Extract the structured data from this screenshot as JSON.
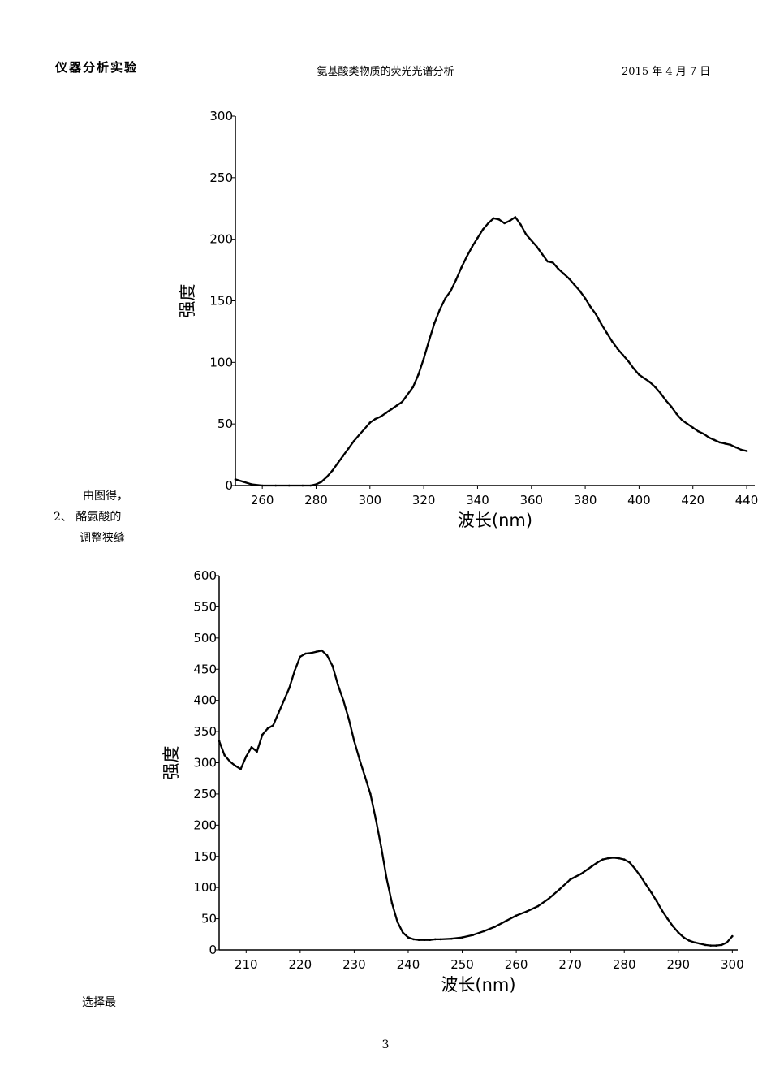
{
  "header": {
    "left": "仪器分析实验",
    "center": "氨基酸类物质的荧光光谱分析",
    "right": "2015 年 4 月 7 日"
  },
  "body": {
    "line1": "由图得，",
    "line2": "2、 酪氨酸的",
    "line3": "调整狭缝",
    "line4": "选择最"
  },
  "page_number": "3",
  "chart_data": [
    {
      "type": "line",
      "title": "",
      "xlabel": "波长(nm)",
      "ylabel": "强度",
      "xlim": [
        250,
        443
      ],
      "ylim": [
        0,
        300
      ],
      "xticks": [
        260,
        280,
        300,
        320,
        340,
        360,
        380,
        400,
        420,
        440
      ],
      "yticks": [
        0,
        50,
        100,
        150,
        200,
        250,
        300
      ],
      "x": [
        250,
        253,
        256,
        260,
        265,
        270,
        275,
        278,
        280,
        282,
        284,
        286,
        288,
        290,
        292,
        294,
        296,
        298,
        300,
        302,
        304,
        306,
        308,
        310,
        312,
        314,
        316,
        318,
        320,
        322,
        324,
        326,
        328,
        330,
        332,
        334,
        336,
        338,
        340,
        342,
        344,
        346,
        348,
        350,
        352,
        354,
        356,
        358,
        360,
        362,
        364,
        366,
        368,
        370,
        372,
        374,
        376,
        378,
        380,
        382,
        384,
        386,
        388,
        390,
        392,
        394,
        396,
        398,
        400,
        402,
        404,
        406,
        408,
        410,
        412,
        414,
        416,
        418,
        420,
        422,
        424,
        426,
        428,
        430,
        432,
        434,
        436,
        438,
        440
      ],
      "values": [
        5,
        3,
        1,
        0,
        0,
        0,
        0,
        0,
        1,
        3,
        7,
        12,
        18,
        24,
        30,
        36,
        41,
        46,
        51,
        54,
        56,
        59,
        62,
        65,
        68,
        74,
        80,
        90,
        103,
        118,
        132,
        143,
        152,
        158,
        167,
        177,
        186,
        194,
        201,
        208,
        213,
        217,
        216,
        213,
        215,
        218,
        212,
        204,
        199,
        194,
        188,
        182,
        181,
        176,
        172,
        168,
        163,
        158,
        152,
        145,
        139,
        131,
        124,
        117,
        111,
        106,
        101,
        95,
        90,
        87,
        84,
        80,
        75,
        69,
        64,
        58,
        53,
        50,
        47,
        44,
        42,
        39,
        37,
        35,
        34,
        33,
        31,
        29,
        28
      ]
    },
    {
      "type": "line",
      "title": "",
      "xlabel": "波长(nm)",
      "ylabel": "强度",
      "xlim": [
        205,
        301
      ],
      "ylim": [
        0,
        600
      ],
      "xticks": [
        210,
        220,
        230,
        240,
        250,
        260,
        270,
        280,
        290,
        300
      ],
      "yticks": [
        0,
        50,
        100,
        150,
        200,
        250,
        300,
        350,
        400,
        450,
        500,
        550,
        600
      ],
      "x": [
        205,
        206,
        207,
        208,
        209,
        210,
        211,
        212,
        213,
        214,
        215,
        216,
        217,
        218,
        219,
        220,
        221,
        222,
        223,
        224,
        225,
        226,
        227,
        228,
        229,
        230,
        231,
        232,
        233,
        234,
        235,
        236,
        237,
        238,
        239,
        240,
        241,
        242,
        243,
        244,
        245,
        246,
        248,
        250,
        252,
        254,
        256,
        258,
        260,
        262,
        264,
        266,
        268,
        270,
        272,
        274,
        275,
        276,
        277,
        278,
        279,
        280,
        281,
        282,
        283,
        284,
        285,
        286,
        287,
        288,
        289,
        290,
        291,
        292,
        293,
        294,
        295,
        296,
        297,
        298,
        299,
        300
      ],
      "values": [
        335,
        312,
        302,
        295,
        290,
        310,
        325,
        318,
        345,
        355,
        360,
        380,
        400,
        420,
        448,
        470,
        475,
        476,
        478,
        480,
        472,
        455,
        425,
        400,
        370,
        335,
        305,
        278,
        250,
        210,
        165,
        115,
        75,
        45,
        28,
        20,
        17,
        16,
        16,
        16,
        17,
        17,
        18,
        20,
        24,
        30,
        37,
        46,
        55,
        62,
        70,
        82,
        97,
        113,
        122,
        134,
        140,
        145,
        147,
        148,
        147,
        145,
        140,
        130,
        118,
        105,
        92,
        78,
        63,
        50,
        38,
        28,
        20,
        15,
        12,
        10,
        8,
        7,
        7,
        8,
        12,
        22
      ]
    }
  ]
}
